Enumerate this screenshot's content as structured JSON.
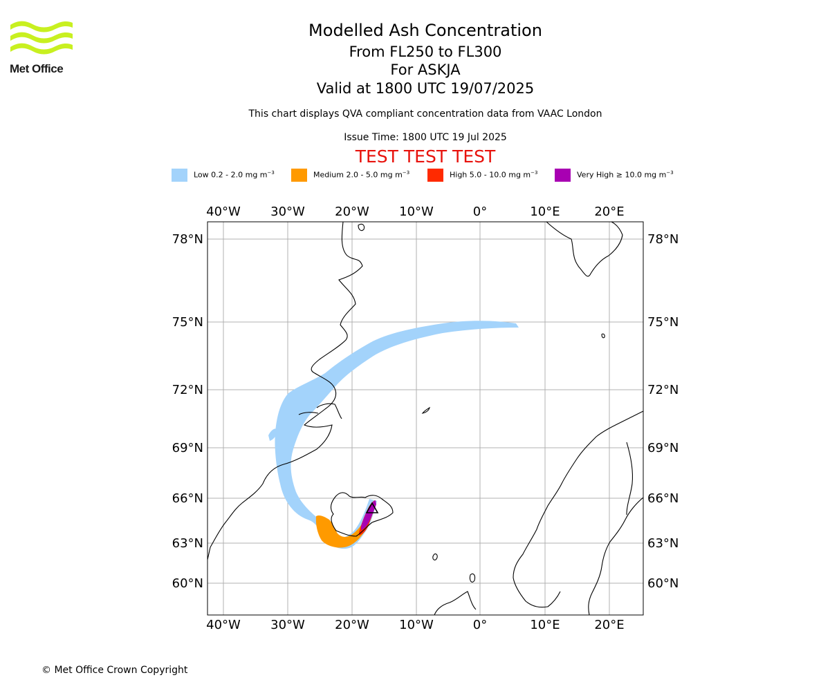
{
  "header": {
    "title": "Modelled Ash Concentration",
    "flight_levels": "From FL250 to FL300",
    "volcano": "For ASKJA",
    "valid_time": "Valid at 1800 UTC 19/07/2025",
    "description": "This chart displays QVA compliant concentration data from VAAC London",
    "issue_time": "Issue Time: 1800 UTC 19 Jul 2025",
    "test_banner": "TEST TEST TEST"
  },
  "logo": {
    "text": "Met Office",
    "color": "#c8f020",
    "icon": "met-office-wave-logo"
  },
  "legend": [
    {
      "label": "Low 0.2 - 2.0 mg m",
      "color": "#a3d3fb"
    },
    {
      "label": "Medium 2.0 - 5.0 mg m",
      "color": "#ff9a00"
    },
    {
      "label": "High 5.0 - 10.0 mg m",
      "color": "#ff2a00"
    },
    {
      "label": "Very High ≥ 10.0 mg m",
      "color": "#a800b2"
    }
  ],
  "legend_unit_exponent": "−3",
  "map": {
    "lon_labels": [
      "40°W",
      "30°W",
      "20°W",
      "10°W",
      "0°",
      "10°E",
      "20°E"
    ],
    "lat_labels": [
      "78°N",
      "75°N",
      "72°N",
      "69°N",
      "66°N",
      "63°N",
      "60°N"
    ],
    "gridline_color": "#b0b0b0",
    "coastline_color": "#000000",
    "volcano_marker": "volcano-triangle-icon"
  },
  "footer": {
    "copyright": "© Met Office Crown Copyright"
  }
}
